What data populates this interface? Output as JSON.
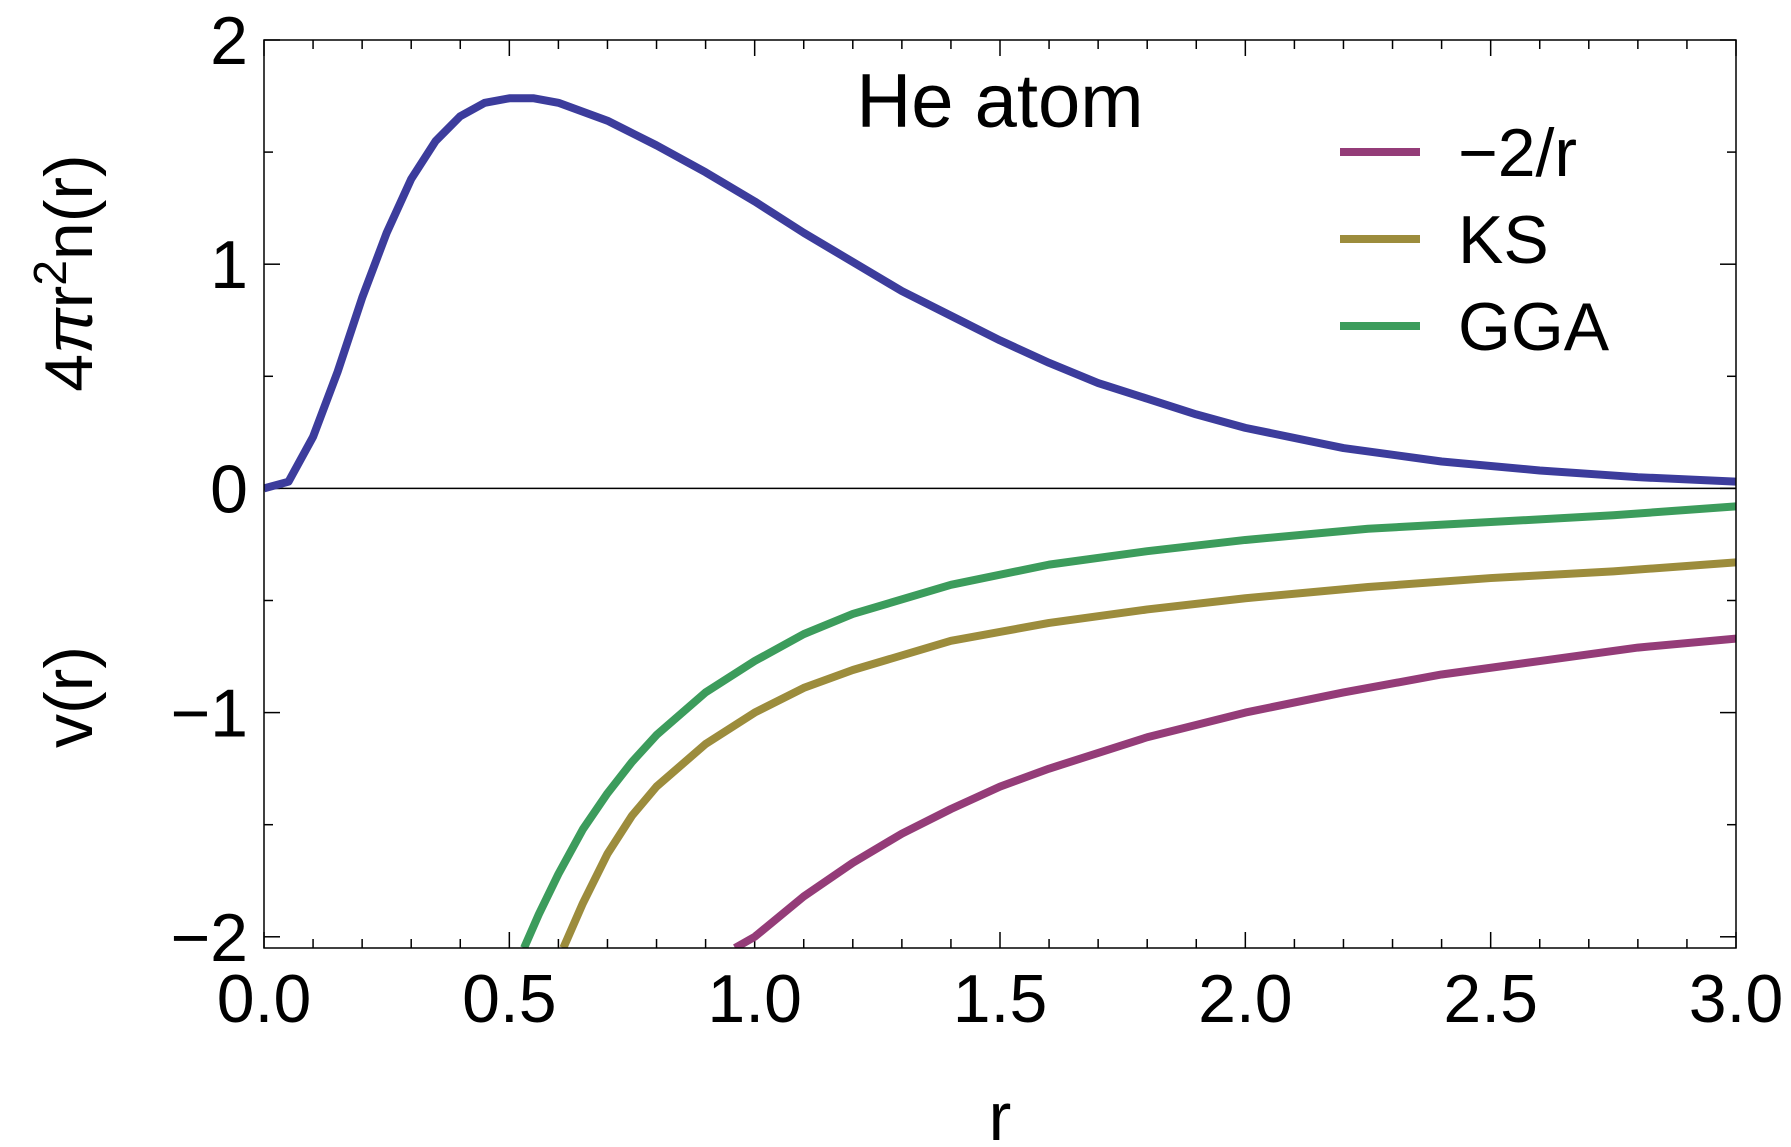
{
  "chart_data": {
    "type": "line",
    "annotation": "He atom",
    "xlabel": "r",
    "ylabel_upper": {
      "base": "4",
      "pi": "π",
      "r": "r",
      "sup": "2",
      "rest": "n(r)"
    },
    "ylabel_lower": "v(r)",
    "xlim": [
      0,
      3
    ],
    "ylim": [
      -2.05,
      2
    ],
    "grid": false,
    "legend_position": "top-right",
    "x_ticks": [
      {
        "value": 0,
        "label": "0.0"
      },
      {
        "value": 0.5,
        "label": "0.5"
      },
      {
        "value": 1,
        "label": "1.0"
      },
      {
        "value": 1.5,
        "label": "1.5"
      },
      {
        "value": 2,
        "label": "2.0"
      },
      {
        "value": 2.5,
        "label": "2.5"
      },
      {
        "value": 3,
        "label": "3.0"
      }
    ],
    "y_ticks": [
      {
        "value": 2,
        "label": "2"
      },
      {
        "value": 1,
        "label": "1"
      },
      {
        "value": 0,
        "label": "0"
      },
      {
        "value": -1,
        "label": "−1"
      },
      {
        "value": -2,
        "label": "−2"
      }
    ],
    "series": [
      {
        "color": "#3c3c9c",
        "x": [
          0.0,
          0.05,
          0.1,
          0.15,
          0.2,
          0.25,
          0.3,
          0.35,
          0.4,
          0.45,
          0.5,
          0.55,
          0.6,
          0.7,
          0.8,
          0.9,
          1.0,
          1.1,
          1.2,
          1.3,
          1.4,
          1.5,
          1.6,
          1.7,
          1.8,
          1.9,
          2.0,
          2.2,
          2.4,
          2.6,
          2.8,
          3.0
        ],
        "y": [
          0.0,
          0.03,
          0.23,
          0.52,
          0.85,
          1.14,
          1.38,
          1.55,
          1.66,
          1.72,
          1.74,
          1.74,
          1.72,
          1.64,
          1.53,
          1.41,
          1.28,
          1.14,
          1.01,
          0.88,
          0.77,
          0.66,
          0.56,
          0.47,
          0.4,
          0.33,
          0.27,
          0.18,
          0.12,
          0.08,
          0.05,
          0.03
        ]
      },
      {
        "name": "−2/r",
        "color": "#943c78",
        "x": [
          0.96,
          1.0,
          1.1,
          1.2,
          1.3,
          1.4,
          1.5,
          1.6,
          1.8,
          2.0,
          2.2,
          2.4,
          2.6,
          2.8,
          3.0
        ],
        "y": [
          -2.05,
          -2.0,
          -1.82,
          -1.67,
          -1.54,
          -1.43,
          -1.33,
          -1.25,
          -1.11,
          -1.0,
          -0.91,
          -0.83,
          -0.77,
          -0.71,
          -0.67
        ]
      },
      {
        "name": "KS",
        "color": "#9c8c3c",
        "x": [
          0.61,
          0.65,
          0.7,
          0.75,
          0.8,
          0.9,
          1.0,
          1.1,
          1.2,
          1.4,
          1.6,
          1.8,
          2.0,
          2.25,
          2.5,
          2.75,
          3.0
        ],
        "y": [
          -2.05,
          -1.85,
          -1.63,
          -1.46,
          -1.33,
          -1.14,
          -1.0,
          -0.89,
          -0.81,
          -0.68,
          -0.6,
          -0.54,
          -0.49,
          -0.44,
          -0.4,
          -0.37,
          -0.33
        ]
      },
      {
        "name": "GGA",
        "color": "#3c9c5c",
        "x": [
          0.53,
          0.56,
          0.6,
          0.65,
          0.7,
          0.75,
          0.8,
          0.9,
          1.0,
          1.1,
          1.2,
          1.4,
          1.6,
          1.8,
          2.0,
          2.25,
          2.5,
          2.75,
          3.0
        ],
        "y": [
          -2.05,
          -1.9,
          -1.72,
          -1.52,
          -1.36,
          -1.22,
          -1.1,
          -0.91,
          -0.77,
          -0.65,
          -0.56,
          -0.43,
          -0.34,
          -0.28,
          -0.23,
          -0.18,
          -0.15,
          -0.12,
          -0.08
        ]
      }
    ]
  }
}
